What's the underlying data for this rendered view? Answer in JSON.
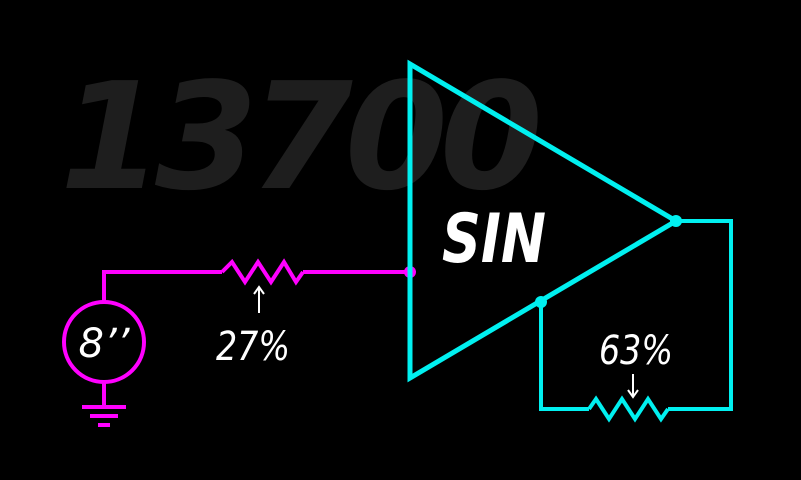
{
  "background_number": "13700",
  "amplifier": {
    "label": "SIN"
  },
  "source": {
    "label": "8’’"
  },
  "input_resistor": {
    "label": "27%"
  },
  "feedback_resistor": {
    "label": "63%"
  },
  "colors": {
    "input_wire": "#ff00ff",
    "feedback_wire": "#00f0f0",
    "background": "#000000",
    "background_number": "#1e1e1e",
    "text": "#ffffff"
  }
}
